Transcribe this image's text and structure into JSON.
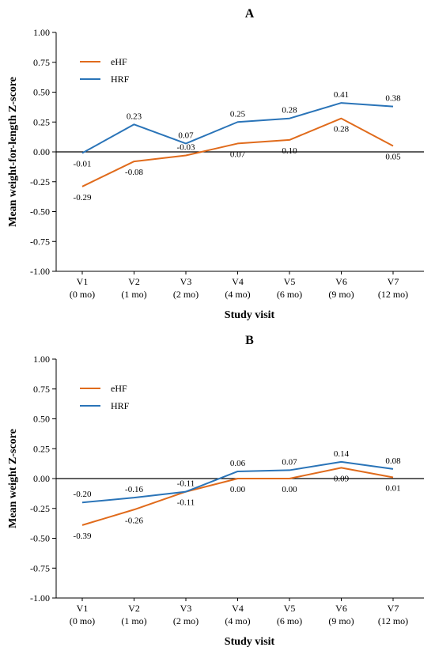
{
  "chart_data": [
    {
      "type": "line",
      "panel_label": "A",
      "categories": [
        "V1",
        "V2",
        "V3",
        "V4",
        "V5",
        "V6",
        "V7"
      ],
      "category_sublabels": [
        "(0 mo)",
        "(1 mo)",
        "(2 mo)",
        "(4 mo)",
        "(6 mo)",
        "(9 mo)",
        "(12 mo)"
      ],
      "xlabel": "Study visit",
      "ylabel": "Mean weight-for-length  Z-score",
      "ylim": [
        -1.0,
        1.0
      ],
      "yticks": [
        "1.00",
        "0.75",
        "0.50",
        "0.25",
        "0.00",
        "-0.25",
        "-0.50",
        "-0.75",
        "-1.00"
      ],
      "legend_position": "top-left",
      "grid": false,
      "series": [
        {
          "name": "eHF",
          "color": "#e06b1c",
          "values": [
            -0.29,
            -0.08,
            -0.03,
            0.07,
            0.1,
            0.28,
            0.05
          ],
          "labels": [
            "-0.29",
            "-0.08",
            "-0.03",
            "0.07",
            "0.10",
            "0.28",
            "0.05"
          ]
        },
        {
          "name": "HRF",
          "color": "#2a74b8",
          "values": [
            -0.01,
            0.23,
            0.07,
            0.25,
            0.28,
            0.41,
            0.38
          ],
          "labels": [
            "-0.01",
            "0.23",
            "0.07",
            "0.25",
            "0.28",
            "0.41",
            "0.38"
          ]
        }
      ]
    },
    {
      "type": "line",
      "panel_label": "B",
      "categories": [
        "V1",
        "V2",
        "V3",
        "V4",
        "V5",
        "V6",
        "V7"
      ],
      "category_sublabels": [
        "(0 mo)",
        "(1 mo)",
        "(2 mo)",
        "(4 mo)",
        "(6 mo)",
        "(9 mo)",
        "(12 mo)"
      ],
      "xlabel": "Study visit",
      "ylabel": "Mean weight  Z-score",
      "ylim": [
        -1.0,
        1.0
      ],
      "yticks": [
        "1.00",
        "0.75",
        "0.50",
        "0.25",
        "0.00",
        "-0.25",
        "-0.50",
        "-0.75",
        "-1.00"
      ],
      "legend_position": "top-left",
      "grid": false,
      "series": [
        {
          "name": "eHF",
          "color": "#e06b1c",
          "values": [
            -0.39,
            -0.26,
            -0.11,
            0.0,
            0.0,
            0.09,
            0.01
          ],
          "labels": [
            "-0.39",
            "-0.26",
            "-0.11",
            "0.00",
            "0.00",
            "0.09",
            "0.01"
          ]
        },
        {
          "name": "HRF",
          "color": "#2a74b8",
          "values": [
            -0.2,
            -0.16,
            -0.11,
            0.06,
            0.07,
            0.14,
            0.08
          ],
          "labels": [
            "-0.20",
            "-0.16",
            "-0.11",
            "0.06",
            "0.07",
            "0.14",
            "0.08"
          ]
        }
      ]
    }
  ]
}
